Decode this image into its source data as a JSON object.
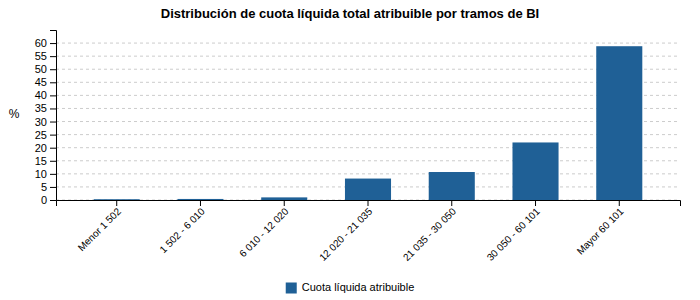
{
  "chart_data": {
    "type": "bar",
    "title": "Distribución de cuota líquida total atribuible por tramos de BI",
    "categories": [
      "Menor 1 502",
      "1 502 - 6 010",
      "6 010 - 12 020",
      "12 020 - 21 035",
      "21 035 - 30 050",
      "30 050 - 60 101",
      "Mayor 60 101"
    ],
    "series": [
      {
        "name": "Cuota líquida atribuible",
        "color": "#1f6096",
        "values": [
          0.3,
          0.4,
          1.0,
          8.2,
          10.7,
          22.0,
          58.8
        ]
      }
    ],
    "ylabel": "%",
    "ylim": [
      0,
      65
    ],
    "yticks": [
      0,
      5,
      10,
      15,
      20,
      25,
      30,
      35,
      40,
      45,
      50,
      55,
      60
    ],
    "grid": true,
    "legend": "bottom"
  }
}
